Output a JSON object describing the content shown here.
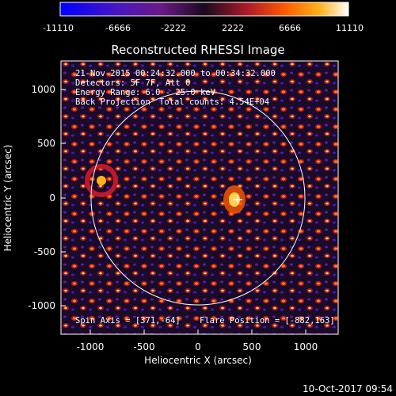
{
  "colorbar": {
    "ticks": [
      "-11110",
      "-6666",
      "-2222",
      "2222",
      "6666",
      "11110"
    ],
    "stops": [
      "#0000ff",
      "#4a16c0",
      "#6a1a86",
      "#1a0a1f",
      "#b01a2a",
      "#ff5a00",
      "#ffb21a",
      "#ffffff"
    ]
  },
  "title": "Reconstructed RHESSI Image",
  "info": {
    "line1": "21-Nov-2015 00:24:32.000 to 00:34:32.000",
    "line2": "Detectors: 5F 7F, Att 0",
    "line3": "Energy Range: 6.0 - 25.0 keV",
    "line4a": "Back Projection",
    "line4b": "Total counts: 4.54E+04"
  },
  "axes": {
    "xlabel": "Heliocentric X (arcsec)",
    "ylabel": "Heliocentric Y (arcsec)",
    "xticks": [
      "-1000",
      "-500",
      "0",
      "500",
      "1000"
    ],
    "yticks": [
      "1000",
      "500",
      "0",
      "-500",
      "-1000"
    ]
  },
  "footer": {
    "spin_axis": "Spin Axis = [371,-64]",
    "flare_position": "Flare Position = [-882,163]",
    "timestamp": "10-Oct-2017 09:54"
  }
}
